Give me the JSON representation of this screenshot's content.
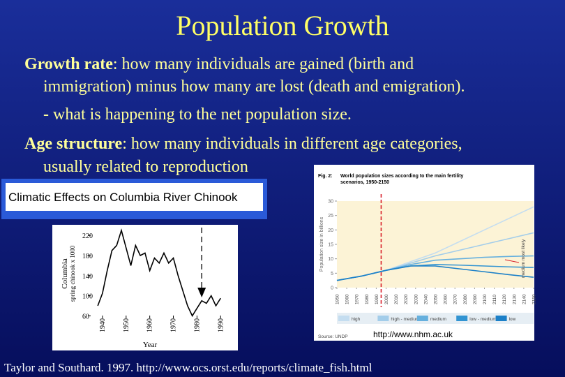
{
  "slide": {
    "title": "Population Growth",
    "growth_term": "Growth rate",
    "growth_text": ":  how many individuals are gained (birth and",
    "growth_cont": "immigration) minus how many are lost (death and emigration).",
    "net_note": "- what is happening to the net population size.",
    "age_term": "Age structure",
    "age_text": ":  how many individuals in different age categories,",
    "age_cont": "usually related to reproduction",
    "source_url": "http://www.nhm.ac.uk",
    "citation": "Taylor and Southard. 1997. http://www.ocs.orst.edu/reports/climate_fish.html"
  },
  "chinook": {
    "type": "line",
    "banner": "Climatic Effects on Columbia River Chinook",
    "y_label_1": "Columbia",
    "y_label_2": "spring chinook x 1000",
    "x_label": "Year",
    "x": [
      1938,
      1940,
      1942,
      1944,
      1946,
      1948,
      1950,
      1952,
      1954,
      1956,
      1958,
      1960,
      1962,
      1964,
      1966,
      1968,
      1970,
      1972,
      1974,
      1976,
      1978,
      1980,
      1982,
      1984,
      1986,
      1988,
      1990
    ],
    "values": [
      80,
      105,
      150,
      190,
      200,
      230,
      195,
      160,
      200,
      180,
      185,
      150,
      175,
      165,
      185,
      165,
      175,
      140,
      110,
      80,
      60,
      75,
      90,
      85,
      100,
      80,
      95
    ],
    "color": "#000000",
    "xlim": [
      1935,
      1997
    ],
    "ylim": [
      55,
      230
    ],
    "xticks": [
      1940,
      1950,
      1960,
      1970,
      1980,
      1990
    ],
    "yticks": [
      60,
      100,
      140,
      180,
      220
    ],
    "marker_year": 1982
  },
  "population": {
    "type": "line",
    "fig_label": "Fig. 2:",
    "title_1": "World population sizes according to the main fertility",
    "title_2": "scenarios, 1950-2150",
    "y_label": "Population size in billions",
    "note": "medium most likely",
    "source": "Source: UNDP",
    "x": [
      1950,
      1975,
      2000,
      2025,
      2050,
      2075,
      2100,
      2125,
      2150
    ],
    "series": [
      {
        "name": "high",
        "color": "#c4ddf0",
        "values": [
          2.5,
          4,
          6,
          9,
          12,
          16,
          20,
          24,
          28
        ]
      },
      {
        "name": "high - medium",
        "color": "#a3cdea",
        "values": [
          2.5,
          4,
          6,
          8.5,
          11,
          13,
          15,
          17,
          19
        ]
      },
      {
        "name": "medium",
        "color": "#66b0de",
        "values": [
          2.5,
          4,
          6,
          8,
          9.5,
          10,
          10.5,
          10.8,
          11
        ]
      },
      {
        "name": "low - medium",
        "color": "#3294d2",
        "values": [
          2.5,
          4,
          6,
          7.5,
          8,
          7.8,
          7.5,
          7.2,
          7
        ]
      },
      {
        "name": "low",
        "color": "#1c80c8",
        "values": [
          2.5,
          4,
          6,
          7.5,
          7.5,
          6.5,
          5.5,
          4.5,
          3.6
        ]
      }
    ],
    "xlim": [
      1950,
      2150
    ],
    "ylim": [
      0,
      30
    ],
    "xticks": [
      1950,
      1960,
      1970,
      1980,
      1990,
      2000,
      2010,
      2020,
      2030,
      2040,
      2050,
      2060,
      2070,
      2080,
      2090,
      2100,
      2110,
      2120,
      2130,
      2140,
      2150
    ],
    "yticks": [
      0,
      5,
      10,
      15,
      20,
      25,
      30
    ],
    "marker_year": 1995
  }
}
